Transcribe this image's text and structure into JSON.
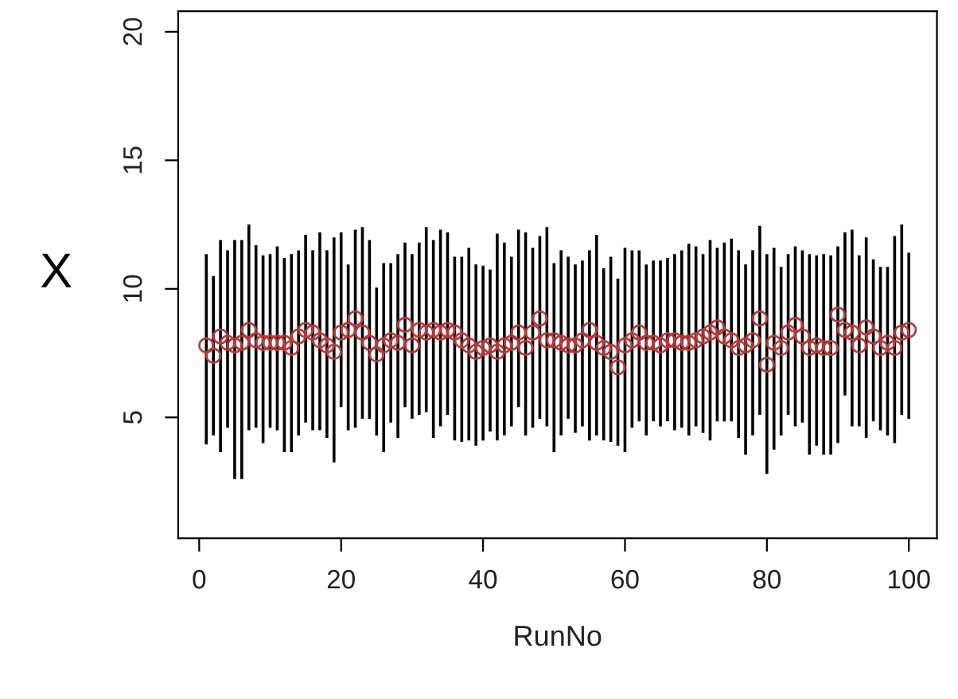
{
  "chart_data": {
    "type": "scatter",
    "xlabel": "RunNo",
    "ylabel": "X",
    "x": [
      1,
      2,
      3,
      4,
      5,
      6,
      7,
      8,
      9,
      10,
      11,
      12,
      13,
      14,
      15,
      16,
      17,
      18,
      19,
      20,
      21,
      22,
      23,
      24,
      25,
      26,
      27,
      28,
      29,
      30,
      31,
      32,
      33,
      34,
      35,
      36,
      37,
      38,
      39,
      40,
      41,
      42,
      43,
      44,
      45,
      46,
      47,
      48,
      49,
      50,
      51,
      52,
      53,
      54,
      55,
      56,
      57,
      58,
      59,
      60,
      61,
      62,
      63,
      64,
      65,
      66,
      67,
      68,
      69,
      70,
      71,
      72,
      73,
      74,
      75,
      76,
      77,
      78,
      79,
      80,
      81,
      82,
      83,
      84,
      85,
      86,
      87,
      88,
      89,
      90,
      91,
      92,
      93,
      94,
      95,
      96,
      97,
      98,
      99,
      100
    ],
    "series": [
      {
        "color": "#b5393c",
        "marker": "circle",
        "values": [
          7.8,
          7.4,
          8.15,
          7.9,
          7.8,
          7.9,
          8.4,
          8.0,
          7.9,
          7.9,
          7.9,
          7.9,
          7.7,
          8.15,
          8.4,
          8.3,
          8.0,
          7.8,
          7.55,
          8.3,
          8.4,
          8.85,
          8.3,
          7.9,
          7.45,
          7.8,
          8.0,
          7.9,
          8.6,
          7.8,
          8.4,
          8.3,
          8.4,
          8.3,
          8.4,
          8.3,
          8.0,
          7.8,
          7.55,
          7.7,
          7.8,
          7.55,
          7.8,
          7.9,
          8.3,
          7.7,
          8.3,
          8.85,
          8.0,
          8.0,
          7.9,
          7.8,
          7.8,
          8.0,
          8.4,
          7.9,
          7.7,
          7.55,
          6.95,
          7.8,
          8.0,
          8.3,
          7.9,
          7.9,
          7.8,
          8.0,
          8.0,
          7.9,
          7.9,
          8.0,
          8.15,
          8.3,
          8.5,
          8.15,
          8.0,
          7.7,
          7.8,
          8.0,
          8.85,
          7.05,
          7.9,
          7.7,
          8.3,
          8.6,
          8.15,
          7.7,
          7.8,
          7.7,
          7.7,
          9.0,
          8.4,
          8.3,
          7.8,
          8.5,
          8.15,
          7.7,
          7.9,
          7.7,
          8.3,
          8.4
        ],
        "errors": [
          [
            3.95,
            11.35
          ],
          [
            4.3,
            10.5
          ],
          [
            3.65,
            11.9
          ],
          [
            4.6,
            11.5
          ],
          [
            2.6,
            11.9
          ],
          [
            2.6,
            11.9
          ],
          [
            4.5,
            12.5
          ],
          [
            4.6,
            11.7
          ],
          [
            4.0,
            11.3
          ],
          [
            4.6,
            11.35
          ],
          [
            4.5,
            11.65
          ],
          [
            3.65,
            11.2
          ],
          [
            3.65,
            11.35
          ],
          [
            4.3,
            11.5
          ],
          [
            4.8,
            12.1
          ],
          [
            4.5,
            11.5
          ],
          [
            4.5,
            12.2
          ],
          [
            4.2,
            11.5
          ],
          [
            3.25,
            12.0
          ],
          [
            5.4,
            12.2
          ],
          [
            4.5,
            10.95
          ],
          [
            4.6,
            12.3
          ],
          [
            4.95,
            12.4
          ],
          [
            4.95,
            11.9
          ],
          [
            4.3,
            10.05
          ],
          [
            3.65,
            11.0
          ],
          [
            4.8,
            11.0
          ],
          [
            4.2,
            11.35
          ],
          [
            5.4,
            11.8
          ],
          [
            4.95,
            11.35
          ],
          [
            5.1,
            11.8
          ],
          [
            5.2,
            12.4
          ],
          [
            4.2,
            11.9
          ],
          [
            4.65,
            12.3
          ],
          [
            5.1,
            12.2
          ],
          [
            4.1,
            11.25
          ],
          [
            4.05,
            11.25
          ],
          [
            4.1,
            11.6
          ],
          [
            3.9,
            10.95
          ],
          [
            4.1,
            10.9
          ],
          [
            4.45,
            10.75
          ],
          [
            4.1,
            12.15
          ],
          [
            4.3,
            11.8
          ],
          [
            4.65,
            11.25
          ],
          [
            5.4,
            12.3
          ],
          [
            4.3,
            12.2
          ],
          [
            4.6,
            11.6
          ],
          [
            4.95,
            12.05
          ],
          [
            4.65,
            12.4
          ],
          [
            3.65,
            11.0
          ],
          [
            4.3,
            11.5
          ],
          [
            4.95,
            11.25
          ],
          [
            4.4,
            10.95
          ],
          [
            4.65,
            11.1
          ],
          [
            4.1,
            11.5
          ],
          [
            4.3,
            12.1
          ],
          [
            4.1,
            10.8
          ],
          [
            4.05,
            11.25
          ],
          [
            3.9,
            10.4
          ],
          [
            3.65,
            11.6
          ],
          [
            4.6,
            11.5
          ],
          [
            4.85,
            11.5
          ],
          [
            4.3,
            10.95
          ],
          [
            4.85,
            11.1
          ],
          [
            4.65,
            11.1
          ],
          [
            4.85,
            11.2
          ],
          [
            4.5,
            11.35
          ],
          [
            4.6,
            11.5
          ],
          [
            4.3,
            11.75
          ],
          [
            4.65,
            11.65
          ],
          [
            4.4,
            11.35
          ],
          [
            4.1,
            11.9
          ],
          [
            4.85,
            11.6
          ],
          [
            4.85,
            11.8
          ],
          [
            4.85,
            11.95
          ],
          [
            4.2,
            11.5
          ],
          [
            3.55,
            10.95
          ],
          [
            4.3,
            11.5
          ],
          [
            5.1,
            12.45
          ],
          [
            2.8,
            11.35
          ],
          [
            3.75,
            11.6
          ],
          [
            4.3,
            10.85
          ],
          [
            5.1,
            11.35
          ],
          [
            4.65,
            11.65
          ],
          [
            4.8,
            11.5
          ],
          [
            3.55,
            11.35
          ],
          [
            3.9,
            11.3
          ],
          [
            3.55,
            11.35
          ],
          [
            3.55,
            11.3
          ],
          [
            4.0,
            11.65
          ],
          [
            5.85,
            12.2
          ],
          [
            4.65,
            12.3
          ],
          [
            4.65,
            11.3
          ],
          [
            4.2,
            12.0
          ],
          [
            4.85,
            11.15
          ],
          [
            4.5,
            10.85
          ],
          [
            4.3,
            10.85
          ],
          [
            4.0,
            12.05
          ],
          [
            5.1,
            12.5
          ],
          [
            4.95,
            11.4
          ]
        ]
      }
    ],
    "xlim": [
      -2.96,
      103.96
    ],
    "ylim": [
      0.3,
      20.8
    ],
    "xticks": [
      0,
      20,
      40,
      60,
      80,
      100
    ],
    "yticks": [
      5,
      10,
      15,
      20
    ],
    "grid": false,
    "legend": false
  }
}
